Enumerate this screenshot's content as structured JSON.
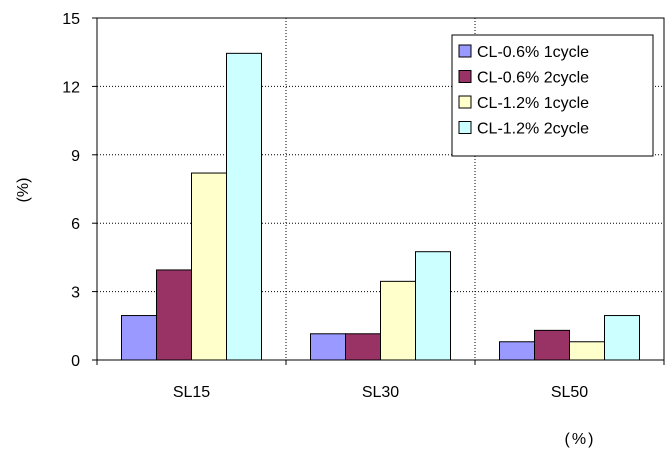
{
  "chart_data": {
    "type": "bar",
    "categories": [
      "SL15",
      "SL30",
      "SL50"
    ],
    "series": [
      {
        "name": "CL-0.6% 1cycle",
        "color": "#9999ff",
        "values": [
          1.95,
          1.15,
          0.8
        ]
      },
      {
        "name": "CL-0.6% 2cycle",
        "color": "#993366",
        "values": [
          3.95,
          1.15,
          1.3
        ]
      },
      {
        "name": "CL-1.2% 1cycle",
        "color": "#ffffcc",
        "values": [
          8.2,
          3.45,
          0.8
        ]
      },
      {
        "name": "CL-1.2% 2cycle",
        "color": "#ccffff",
        "values": [
          13.45,
          4.75,
          1.95
        ]
      }
    ],
    "ylabel": "(%)",
    "xlabel": "(%)",
    "ylim": [
      0,
      15
    ],
    "yticks": [
      0,
      3,
      6,
      9,
      12,
      15
    ],
    "grid": "dotted, both axes",
    "legend_position": "top-right"
  }
}
